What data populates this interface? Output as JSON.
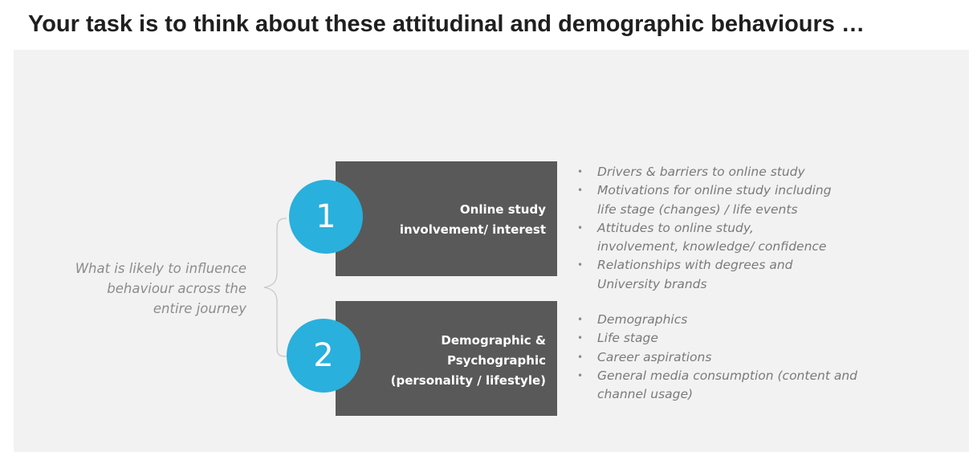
{
  "title": "Your task is to think about these attitudinal and demographic behaviours …",
  "question": {
    "line1": "What is likely to influence",
    "line2": "behaviour across the",
    "line3": "entire journey"
  },
  "items": [
    {
      "number": "1",
      "label_line1": "Online study",
      "label_line2": "involvement/ interest",
      "bullets": [
        {
          "line1": "Drivers & barriers to online study"
        },
        {
          "line1": "Motivations for online study including",
          "line2": "life stage (changes) / life events"
        },
        {
          "line1": "Attitudes to online study,",
          "line2": "involvement, knowledge/ confidence"
        },
        {
          "line1": "Relationships with degrees and",
          "line2": "University brands"
        }
      ]
    },
    {
      "number": "2",
      "label_line1": "Demographic &",
      "label_line2": "Psychographic",
      "label_line3": "(personality / lifestyle)",
      "bullets": [
        {
          "line1": "Demographics"
        },
        {
          "line1": "Life stage"
        },
        {
          "line1": "Career aspirations"
        },
        {
          "line1": "General media consumption (content and",
          "line2": "channel usage)"
        }
      ]
    }
  ],
  "bullet_glyph": "•",
  "colors": {
    "panel": "#f2f2f2",
    "box": "#595959",
    "circle": "#29b0dd",
    "bullet_text": "#7a7a7a",
    "question_text": "#8c8c8c"
  }
}
